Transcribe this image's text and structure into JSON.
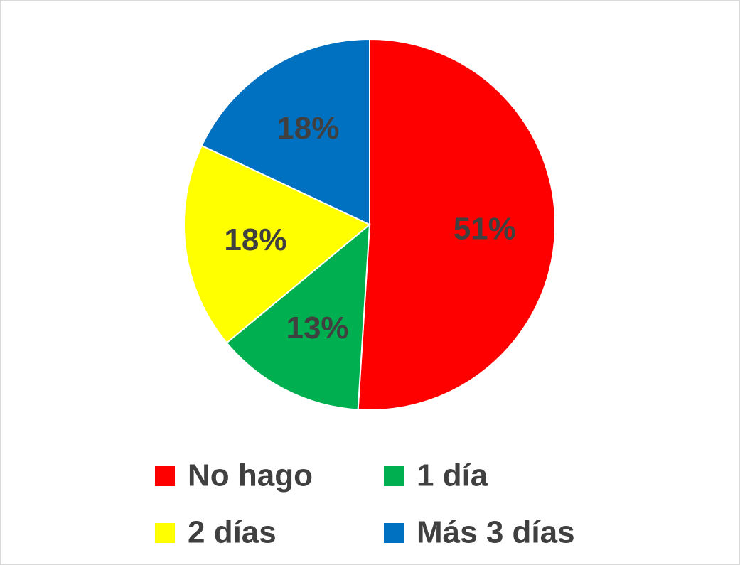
{
  "chart_data": {
    "type": "pie",
    "categories": [
      "No hago",
      "1 día",
      "2 días",
      "Más 3 días"
    ],
    "values": [
      51,
      13,
      18,
      18
    ],
    "value_labels": [
      "51%",
      "13%",
      "18%",
      "18%"
    ],
    "colors": [
      "#ff0000",
      "#00b050",
      "#ffff00",
      "#0070c0"
    ],
    "legend": "bottom"
  }
}
